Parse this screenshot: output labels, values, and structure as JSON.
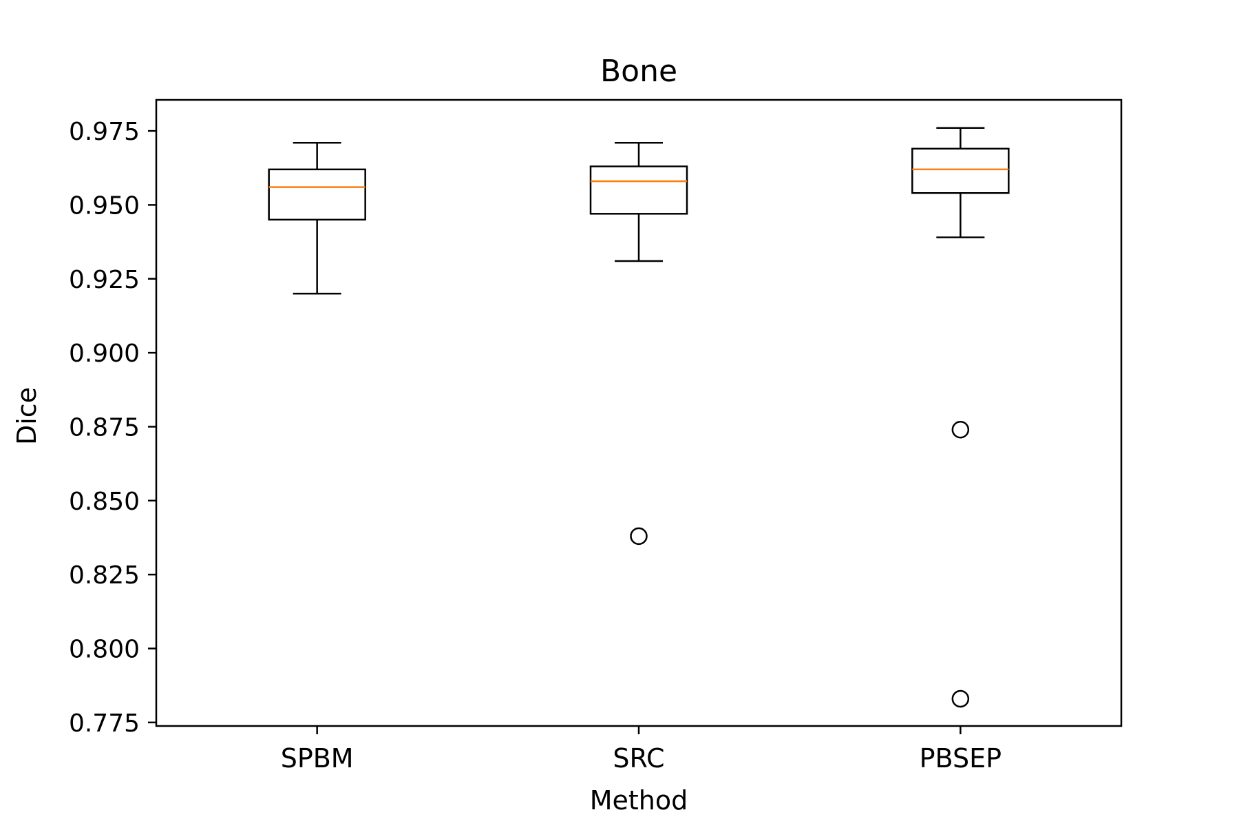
{
  "chart_data": {
    "type": "box",
    "title": "Bone",
    "xlabel": "Method",
    "ylabel": "Dice",
    "ylim": [
      0.7738,
      0.9855
    ],
    "yticks": [
      0.775,
      0.8,
      0.825,
      0.85,
      0.875,
      0.9,
      0.925,
      0.95,
      0.975
    ],
    "ytick_labels": [
      "0.775",
      "0.800",
      "0.825",
      "0.850",
      "0.875",
      "0.900",
      "0.925",
      "0.950",
      "0.975"
    ],
    "categories": [
      "SPBM",
      "SRC",
      "PBSEP"
    ],
    "boxes": [
      {
        "name": "SPBM",
        "whisker_low": 0.92,
        "q1": 0.945,
        "median": 0.956,
        "q3": 0.962,
        "whisker_high": 0.971,
        "outliers": []
      },
      {
        "name": "SRC",
        "whisker_low": 0.931,
        "q1": 0.947,
        "median": 0.958,
        "q3": 0.963,
        "whisker_high": 0.971,
        "outliers": [
          0.838
        ]
      },
      {
        "name": "PBSEP",
        "whisker_low": 0.939,
        "q1": 0.954,
        "median": 0.962,
        "q3": 0.969,
        "whisker_high": 0.976,
        "outliers": [
          0.874,
          0.783
        ]
      }
    ],
    "grid": false,
    "colors": {
      "box": "#000000",
      "median": "#ff7f0e",
      "outlier": "#000000"
    }
  }
}
